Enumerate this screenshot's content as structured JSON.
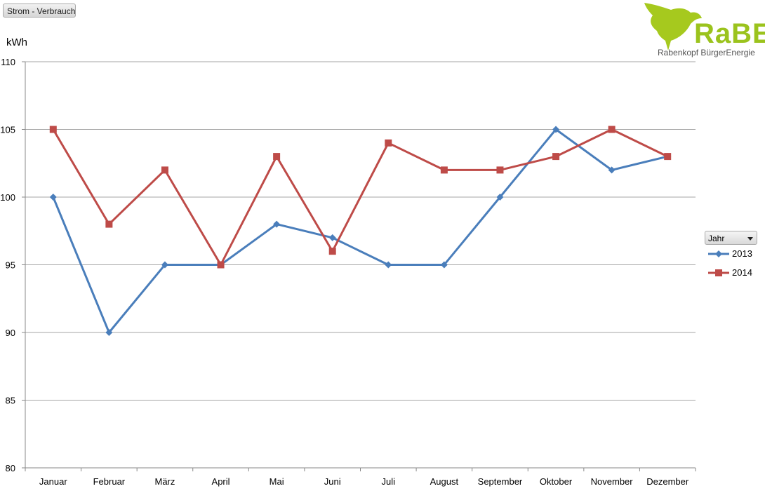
{
  "header": {
    "field_button": "Strom - Verbrauch",
    "unit": "kWh"
  },
  "logo": {
    "icon": "raven-icon",
    "text": "RaBE",
    "subtitle": "Rabenkopf BürgerEnergie",
    "color": "#9bc31d"
  },
  "legend": {
    "filter_label": "Jahr",
    "filter_icon": "chevron-down-icon",
    "position": "right",
    "items": [
      {
        "label": "2013",
        "color": "#4a7ebb",
        "marker": "diamond"
      },
      {
        "label": "2014",
        "color": "#be4b48",
        "marker": "square"
      }
    ]
  },
  "chart_data": {
    "type": "line",
    "ylabel": "kWh",
    "ylim": [
      80,
      110
    ],
    "yticks": [
      80,
      85,
      90,
      95,
      100,
      105,
      110
    ],
    "grid": true,
    "categories": [
      "Januar",
      "Februar",
      "März",
      "April",
      "Mai",
      "Juni",
      "Juli",
      "August",
      "September",
      "Oktober",
      "November",
      "Dezember"
    ],
    "series": [
      {
        "name": "2013",
        "color": "#4a7ebb",
        "marker": "diamond",
        "values": [
          100,
          90,
          95,
          95,
          98,
          97,
          95,
          95,
          100,
          105,
          102,
          103
        ]
      },
      {
        "name": "2014",
        "color": "#be4b48",
        "marker": "square",
        "values": [
          105,
          98,
          102,
          95,
          103,
          96,
          104,
          102,
          102,
          103,
          105,
          103
        ]
      }
    ]
  }
}
